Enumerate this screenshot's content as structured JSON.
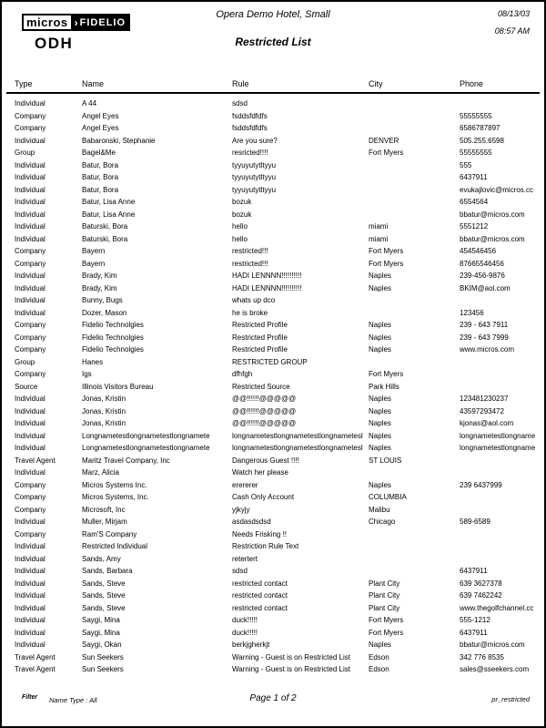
{
  "header": {
    "logo": {
      "micros": "micros",
      "arrow": "›",
      "fidelio": "FIDELIO"
    },
    "resort_code": "ODH",
    "hotel_name": "Opera Demo Hotel, Small",
    "report_title": "Restricted List",
    "date": "08/13/03",
    "time": "08:57 AM"
  },
  "table": {
    "columns": [
      "Type",
      "Name",
      "Rule",
      "City",
      "Phone"
    ],
    "rows": [
      {
        "type": "Individual",
        "name": "A 44",
        "rule": "sdsd",
        "city": "",
        "phone": ""
      },
      {
        "type": "Company",
        "name": "Angel Eyes",
        "rule": "fsddsfdfdfs",
        "city": "",
        "phone": "55555555"
      },
      {
        "type": "Company",
        "name": "Angel Eyes",
        "rule": "fsddsfdfdfs",
        "city": "",
        "phone": "6586787897"
      },
      {
        "type": "Individual",
        "name": "Babaronski, Stephanie",
        "rule": "Are you sure?",
        "city": "DENVER",
        "phone": "505.255.6598"
      },
      {
        "type": "Group",
        "name": "Bagel&Me",
        "rule": "resricted!!!!",
        "city": "Fort Myers",
        "phone": "55555555"
      },
      {
        "type": "Individual",
        "name": "Batur, Bora",
        "rule": "tyyuyutytltyyu",
        "city": "",
        "phone": "555"
      },
      {
        "type": "Individual",
        "name": "Batur, Bora",
        "rule": "tyyuyutytltyyu",
        "city": "",
        "phone": "6437911"
      },
      {
        "type": "Individual",
        "name": "Batur, Bora",
        "rule": "tyyuyutytltyyu",
        "city": "",
        "phone": "evukajlovic@micros.cc"
      },
      {
        "type": "Individual",
        "name": "Batur, Lisa Anne",
        "rule": "bozuk",
        "city": "",
        "phone": "6554564"
      },
      {
        "type": "Individual",
        "name": "Batur, Lisa Anne",
        "rule": "bozuk",
        "city": "",
        "phone": "bbatur@micros.com"
      },
      {
        "type": "Individual",
        "name": "Baturski, Bora",
        "rule": "hello",
        "city": "miami",
        "phone": "5551212"
      },
      {
        "type": "Individual",
        "name": "Baturski, Bora",
        "rule": "hello",
        "city": "miami",
        "phone": "bbatur@micros.com"
      },
      {
        "type": "Company",
        "name": "Bayern",
        "rule": "restricted!!!",
        "city": "Fort Myers",
        "phone": "454546456"
      },
      {
        "type": "Company",
        "name": "Bayern",
        "rule": "restricted!!!",
        "city": "Fort Myers",
        "phone": "87665546456"
      },
      {
        "type": "Individual",
        "name": "Brady, Kim",
        "rule": "HADI LENNNN!!!!!!!!!!",
        "city": "Naples",
        "phone": "239-456-9876"
      },
      {
        "type": "Individual",
        "name": "Brady, Kim",
        "rule": "HADI LENNNN!!!!!!!!!!",
        "city": "Naples",
        "phone": "BKIM@aol.com"
      },
      {
        "type": "Individual",
        "name": "Bunny, Bugs",
        "rule": "whats up dco",
        "city": "",
        "phone": ""
      },
      {
        "type": "Individual",
        "name": "Dozer, Mason",
        "rule": "he is broke",
        "city": "",
        "phone": "123456"
      },
      {
        "type": "Company",
        "name": "Fidelio Technolgies",
        "rule": "Restricted Profile",
        "city": "Naples",
        "phone": "239 - 643 7911"
      },
      {
        "type": "Company",
        "name": "Fidelio Technolgies",
        "rule": "Restricted Profile",
        "city": "Naples",
        "phone": "239 - 643 7999"
      },
      {
        "type": "Company",
        "name": "Fidelio Technolgies",
        "rule": "Restricted Profile",
        "city": "Naples",
        "phone": "www.micros.com"
      },
      {
        "type": "Group",
        "name": "Hanes",
        "rule": "RESTRICTED GROUP",
        "city": "",
        "phone": ""
      },
      {
        "type": "Company",
        "name": "Igs",
        "rule": "dfhfgh",
        "city": "Fort Myers",
        "phone": ""
      },
      {
        "type": "Source",
        "name": "Illinois Visitors Bureau",
        "rule": "Restricted Source",
        "city": "Park Hills",
        "phone": ""
      },
      {
        "type": "Individual",
        "name": "Jonas, Kristin",
        "rule": "@@!!!!!!@@@@@",
        "city": "Naples",
        "phone": "123481230237"
      },
      {
        "type": "Individual",
        "name": "Jonas, Kristin",
        "rule": "@@!!!!!!@@@@@",
        "city": "Naples",
        "phone": "43597293472"
      },
      {
        "type": "Individual",
        "name": "Jonas, Kristin",
        "rule": "@@!!!!!!@@@@@",
        "city": "Naples",
        "phone": "kjonas@aol.com"
      },
      {
        "type": "Individual",
        "name": "Longnametestlongnametestlongnamete",
        "rule": "longnametestlongnametestlongnametesl",
        "city": "Naples",
        "phone": "longnametestlongname"
      },
      {
        "type": "Individual",
        "name": "Longnametestlongnametestlongnamete",
        "rule": "longnametestlongnametestlongnametesl",
        "city": "Naples",
        "phone": "longnametestlongname"
      },
      {
        "type": "Travel Agent",
        "name": "Maritz Travel Company, Inc",
        "rule": "Dangerous Guest !!!!",
        "city": "ST LOUIS",
        "phone": ""
      },
      {
        "type": "Individual",
        "name": "Marz, Alicia",
        "rule": "Watch her please",
        "city": "",
        "phone": ""
      },
      {
        "type": "Company",
        "name": "Micros Systems Inc.",
        "rule": "erererer",
        "city": "Naples",
        "phone": "239 6437999"
      },
      {
        "type": "Company",
        "name": "Micros Systems, Inc.",
        "rule": "Cash Only Account",
        "city": "COLUMBIA",
        "phone": ""
      },
      {
        "type": "Company",
        "name": "Microsoft, Inc",
        "rule": "yjkyjy",
        "city": "Malibu",
        "phone": ""
      },
      {
        "type": "Individual",
        "name": "Muller, Mirjam",
        "rule": "asdasdsdsd",
        "city": "Chicago",
        "phone": "589-6589"
      },
      {
        "type": "Company",
        "name": "Ram'S Company",
        "rule": "Needs Frisking !!",
        "city": "",
        "phone": ""
      },
      {
        "type": "Individual",
        "name": "Restricted Individual",
        "rule": "Restriction Rule Text",
        "city": "",
        "phone": ""
      },
      {
        "type": "Individual",
        "name": "Sands, Amy",
        "rule": "retertert",
        "city": "",
        "phone": ""
      },
      {
        "type": "Individual",
        "name": "Sands, Barbara",
        "rule": "sdsd",
        "city": "",
        "phone": "6437911"
      },
      {
        "type": "Individual",
        "name": "Sands, Steve",
        "rule": "restricted contact",
        "city": "Plant City",
        "phone": "639 3627378"
      },
      {
        "type": "Individual",
        "name": "Sands, Steve",
        "rule": "restricted contact",
        "city": "Plant City",
        "phone": "639 7462242"
      },
      {
        "type": "Individual",
        "name": "Sands, Steve",
        "rule": "restricted contact",
        "city": "Plant City",
        "phone": "www.thegolfchannel.cc"
      },
      {
        "type": "Individual",
        "name": "Saygi, Mina",
        "rule": "duck!!!!!",
        "city": "Fort Myers",
        "phone": "555-1212"
      },
      {
        "type": "Individual",
        "name": "Saygi, Mina",
        "rule": "duck!!!!!",
        "city": "Fort Myers",
        "phone": "6437911"
      },
      {
        "type": "Individual",
        "name": "Saygi, Okan",
        "rule": "berkjgherkjt",
        "city": "Naples",
        "phone": "bbatur@micros.com"
      },
      {
        "type": "Travel Agent",
        "name": "Sun Seekers",
        "rule": "Warning - Guest is on Restricted List",
        "city": "Edson",
        "phone": "342 776 8535"
      },
      {
        "type": "Travel Agent",
        "name": "Sun Seekers",
        "rule": "Warning - Guest is on Restricted List",
        "city": "Edson",
        "phone": "sales@sseekers.com"
      }
    ]
  },
  "footer": {
    "filter_label": "Filter",
    "filter_value": "Name Type : All",
    "page_info": "Page 1 of 2",
    "report_id": "pr_restricted"
  }
}
